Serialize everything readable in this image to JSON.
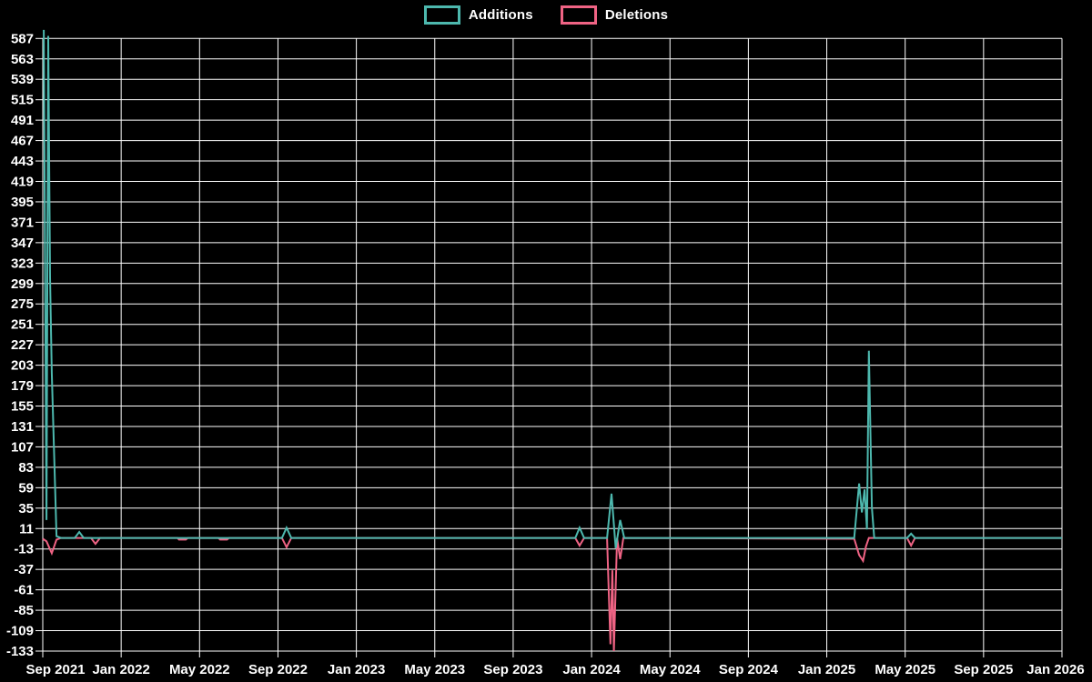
{
  "legend": {
    "items": [
      {
        "label": "Additions",
        "color": "#4db8ae"
      },
      {
        "label": "Deletions",
        "color": "#ef6384"
      }
    ]
  },
  "chart_data": {
    "type": "line",
    "title": "",
    "xlabel": "",
    "ylabel": "",
    "background_color": "#000000",
    "grid": true,
    "grid_color": "#ffffff",
    "text_color": "#ffffff",
    "legend_position": "top-center",
    "x_axis": {
      "unit": "months since Sep 2021",
      "range": [
        0,
        52
      ],
      "ticks": [
        {
          "label": "Sep 2021",
          "t": 0
        },
        {
          "label": "Jan 2022",
          "t": 4
        },
        {
          "label": "May 2022",
          "t": 8
        },
        {
          "label": "Sep 2022",
          "t": 12
        },
        {
          "label": "Jan 2023",
          "t": 16
        },
        {
          "label": "May 2023",
          "t": 20
        },
        {
          "label": "Sep 2023",
          "t": 24
        },
        {
          "label": "Jan 2024",
          "t": 28
        },
        {
          "label": "May 2024",
          "t": 32
        },
        {
          "label": "Sep 2024",
          "t": 36
        },
        {
          "label": "Jan 2025",
          "t": 40
        },
        {
          "label": "May 2025",
          "t": 44
        },
        {
          "label": "Sep 2025",
          "t": 48
        },
        {
          "label": "Jan 2026",
          "t": 52
        }
      ]
    },
    "y_axis": {
      "min": -133,
      "max": 587,
      "step": 24,
      "ticks": [
        587,
        563,
        539,
        515,
        491,
        467,
        443,
        419,
        395,
        371,
        347,
        323,
        299,
        275,
        251,
        227,
        203,
        179,
        155,
        131,
        107,
        83,
        59,
        35,
        11,
        -13,
        -37,
        -61,
        -85,
        -109,
        -133
      ]
    },
    "series": [
      {
        "name": "Additions",
        "color": "#4db8ae",
        "points": [
          [
            0.05,
            597
          ],
          [
            0.19,
            21
          ],
          [
            0.28,
            590
          ],
          [
            0.37,
            306
          ],
          [
            0.46,
            194
          ],
          [
            0.7,
            2
          ],
          [
            0.93,
            0
          ],
          [
            1.63,
            0
          ],
          [
            1.86,
            7
          ],
          [
            2.09,
            0
          ],
          [
            12.2,
            0
          ],
          [
            12.44,
            12
          ],
          [
            12.68,
            0
          ],
          [
            27.17,
            0
          ],
          [
            27.39,
            12
          ],
          [
            27.62,
            0
          ],
          [
            28.79,
            0
          ],
          [
            29.02,
            52
          ],
          [
            29.23,
            -12
          ],
          [
            29.46,
            21
          ],
          [
            29.67,
            0
          ],
          [
            41.4,
            0
          ],
          [
            41.65,
            64
          ],
          [
            41.79,
            30
          ],
          [
            41.93,
            57
          ],
          [
            42.05,
            10
          ],
          [
            42.15,
            220
          ],
          [
            42.3,
            36
          ],
          [
            42.42,
            0
          ],
          [
            44.1,
            0
          ],
          [
            44.3,
            5
          ],
          [
            44.5,
            0
          ],
          [
            52,
            0
          ]
        ]
      },
      {
        "name": "Deletions",
        "color": "#ef6384",
        "points": [
          [
            0.0,
            -1
          ],
          [
            0.19,
            -4
          ],
          [
            0.46,
            -18
          ],
          [
            0.7,
            -2
          ],
          [
            0.93,
            0
          ],
          [
            2.46,
            0
          ],
          [
            2.69,
            -7
          ],
          [
            2.92,
            0
          ],
          [
            6.87,
            0
          ],
          [
            6.95,
            -2
          ],
          [
            7.3,
            -2
          ],
          [
            7.4,
            0
          ],
          [
            8.96,
            0
          ],
          [
            9.05,
            -2
          ],
          [
            9.4,
            -2
          ],
          [
            9.5,
            0
          ],
          [
            12.2,
            0
          ],
          [
            12.44,
            -11
          ],
          [
            12.68,
            0
          ],
          [
            27.17,
            0
          ],
          [
            27.39,
            -9
          ],
          [
            27.62,
            0
          ],
          [
            28.79,
            0
          ],
          [
            28.96,
            -125
          ],
          [
            29.06,
            -38
          ],
          [
            29.14,
            -133
          ],
          [
            29.3,
            0
          ],
          [
            29.46,
            -25
          ],
          [
            29.62,
            0
          ],
          [
            41.4,
            -1
          ],
          [
            41.65,
            -20
          ],
          [
            41.85,
            -27
          ],
          [
            42.0,
            -10
          ],
          [
            42.15,
            0
          ],
          [
            44.1,
            0
          ],
          [
            44.3,
            -9
          ],
          [
            44.5,
            0
          ],
          [
            52,
            0
          ]
        ]
      }
    ]
  }
}
